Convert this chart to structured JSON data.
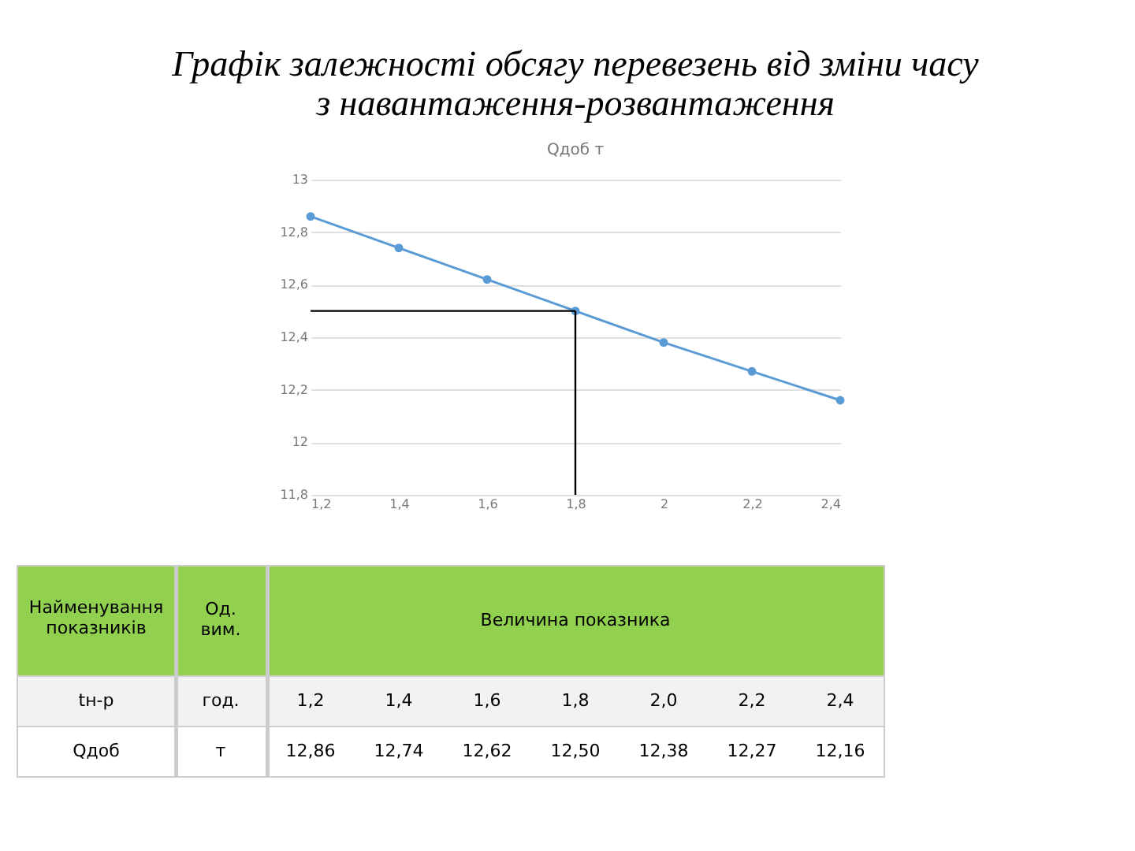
{
  "chart_data": {
    "type": "line",
    "title": "Графік залежності обсягу перевезень від зміни часу\nз навантаження-розвантаження",
    "subtitle": "Qдоб т",
    "x": [
      1.2,
      1.4,
      1.6,
      1.8,
      2.0,
      2.2,
      2.4
    ],
    "xlim": [
      1.2,
      2.4
    ],
    "xticks": [
      {
        "value": 1.2,
        "label": "1,2"
      },
      {
        "value": 1.4,
        "label": "1,4"
      },
      {
        "value": 1.6,
        "label": "1,6"
      },
      {
        "value": 1.8,
        "label": "1,8"
      },
      2,
      {
        "value": 2.2,
        "label": "2,2"
      },
      {
        "value": 2.4,
        "label": "2,4"
      }
    ],
    "ylim": [
      11.8,
      13
    ],
    "yticks": [
      {
        "value": 11.8,
        "label": "11,8"
      },
      12,
      {
        "value": 12.2,
        "label": "12,2"
      },
      {
        "value": 12.4,
        "label": "12,4"
      },
      {
        "value": 12.6,
        "label": "12,6"
      },
      {
        "value": 12.8,
        "label": "12,8"
      },
      13
    ],
    "grid": "y",
    "marker": "circle",
    "line_style": "solid",
    "legend": false,
    "series": [
      {
        "color": "#5b9bd5",
        "values": [
          12.86,
          12.74,
          12.62,
          12.5,
          12.38,
          12.27,
          12.16
        ]
      }
    ],
    "ref_lines": [
      {
        "axis": "y",
        "value": 12.5,
        "color": "#000000"
      },
      {
        "axis": "x",
        "value": 1.8,
        "color": "#000000"
      }
    ],
    "annotations": [
      "Найменування показників",
      "Од. вим.",
      "Величина показника",
      "tн-р",
      "год.",
      "1,2",
      "1,4",
      "1,6",
      "1,8",
      "2,0",
      "2,2",
      "2,4",
      "Qдоб",
      "т",
      "12,86",
      "12,74",
      "12,62",
      "12,50",
      "12,38",
      "12,27",
      "12,16"
    ]
  }
}
